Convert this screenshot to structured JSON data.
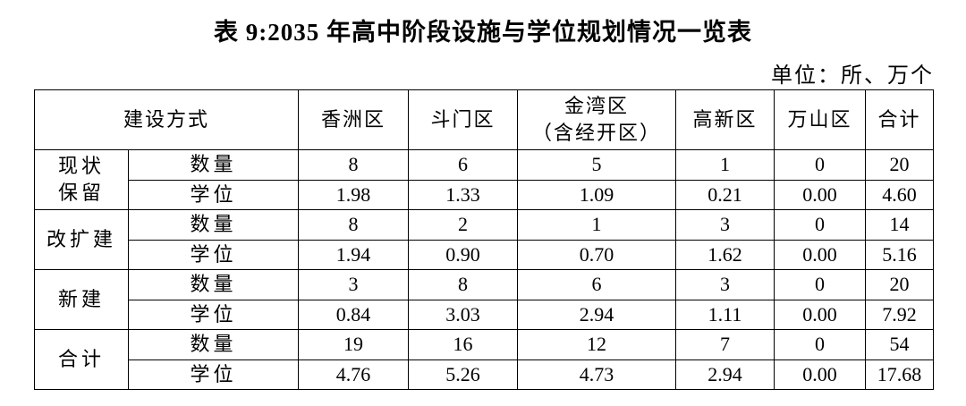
{
  "title": "表 9:2035 年高中阶段设施与学位规划情况一览表",
  "unit": "单位：所、万个",
  "table": {
    "header": [
      [
        "建设方式"
      ],
      [
        "香洲区"
      ],
      [
        "斗门区"
      ],
      [
        "金湾区",
        "（含经开区）"
      ],
      [
        "高新区"
      ],
      [
        "万山区"
      ],
      [
        "合计"
      ]
    ],
    "groups": [
      {
        "name": [
          "现状",
          "保留"
        ],
        "rows": [
          {
            "label": "数量",
            "values": [
              "8",
              "6",
              "5",
              "1",
              "0",
              "20"
            ]
          },
          {
            "label": "学位",
            "values": [
              "1.98",
              "1.33",
              "1.09",
              "0.21",
              "0.00",
              "4.60"
            ]
          }
        ]
      },
      {
        "name": [
          "改扩建"
        ],
        "rows": [
          {
            "label": "数量",
            "values": [
              "8",
              "2",
              "1",
              "3",
              "0",
              "14"
            ]
          },
          {
            "label": "学位",
            "values": [
              "1.94",
              "0.90",
              "0.70",
              "1.62",
              "0.00",
              "5.16"
            ]
          }
        ]
      },
      {
        "name": [
          "新建"
        ],
        "rows": [
          {
            "label": "数量",
            "values": [
              "3",
              "8",
              "6",
              "3",
              "0",
              "20"
            ]
          },
          {
            "label": "学位",
            "values": [
              "0.84",
              "3.03",
              "2.94",
              "1.11",
              "0.00",
              "7.92"
            ]
          }
        ]
      },
      {
        "name": [
          "合计"
        ],
        "rows": [
          {
            "label": "数量",
            "values": [
              "19",
              "16",
              "12",
              "7",
              "0",
              "54"
            ]
          },
          {
            "label": "学位",
            "values": [
              "4.76",
              "5.26",
              "4.73",
              "2.94",
              "0.00",
              "17.68"
            ]
          }
        ]
      }
    ]
  }
}
